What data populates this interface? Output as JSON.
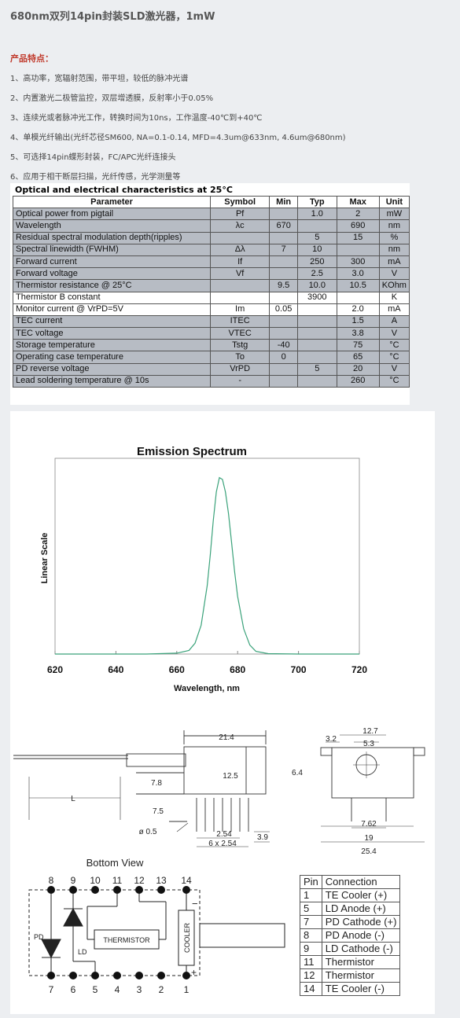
{
  "page": {
    "title": "680nm双列14pin封装SLD激光器，1mW",
    "features_heading": "产品特点：",
    "features": [
      "1、高功率，宽辐射范围，带平坦，较低的脉冲光谱",
      "2、内置激光二极管监控，双层增透膜，反射率小于0.05%",
      "3、连续光或者脉冲光工作，转换时间为10ns，工作温度-40℃到+40℃",
      "4、单模光纤输出(光纤芯径SM600, NA=0.1-0.14, MFD=4.3um@633nm, 4.6um@680nm)",
      "5、可选择14pin蝶形封装，FC/APC光纤连接头",
      "6、应用于相干断层扫描，光纤传感，光学测量等"
    ]
  },
  "spec_table": {
    "caption": "Optical and electrical characteristics at 25°C",
    "headers": [
      "Parameter",
      "Symbol",
      "Min",
      "Typ",
      "Max",
      "Unit"
    ],
    "rows": [
      [
        "Optical power from pigtail",
        "Pf",
        "",
        "1.0",
        "2",
        "mW"
      ],
      [
        "Wavelength",
        "λc",
        "670",
        "",
        "690",
        "nm"
      ],
      [
        "Residual spectral modulation depth(ripples)",
        "",
        "",
        "5",
        "15",
        "%"
      ],
      [
        "Spectral linewidth (FWHM)",
        "Δλ",
        "7",
        "10",
        "",
        "nm"
      ],
      [
        "Forward current",
        "If",
        "",
        "250",
        "300",
        "mA"
      ],
      [
        "Forward voltage",
        "Vf",
        "",
        "2.5",
        "3.0",
        "V"
      ],
      [
        "Thermistor resistance @ 25°C",
        "",
        "9.5",
        "10.0",
        "10.5",
        "KOhm"
      ],
      [
        "Thermistor B constant",
        "",
        "",
        "3900",
        "",
        "K"
      ],
      [
        "Monitor current @ VrPD=5V",
        "Im",
        "0.05",
        "",
        "2.0",
        "mA"
      ],
      [
        "TEC current",
        "ITEC",
        "",
        "",
        "1.5",
        "A"
      ],
      [
        "TEC voltage",
        "VTEC",
        "",
        "",
        "3.8",
        "V"
      ],
      [
        "Storage temperature",
        "Tstg",
        "-40",
        "",
        "75",
        "°C"
      ],
      [
        "Operating case temperature",
        "To",
        "0",
        "",
        "65",
        "°C"
      ],
      [
        "PD reverse voltage",
        "VrPD",
        "",
        "5",
        "20",
        "V"
      ],
      [
        "Lead soldering temperature @ 10s",
        "-",
        "",
        "",
        "260",
        "°C"
      ]
    ]
  },
  "chart_data": {
    "type": "line",
    "title": "Emission Spectrum",
    "xlabel": "Wavelength, nm",
    "ylabel": "Linear Scale",
    "xlim": [
      620,
      720
    ],
    "ylim": [
      0,
      1
    ],
    "x_ticks": [
      "620",
      "640",
      "660",
      "680",
      "700",
      "720"
    ],
    "grid": false,
    "color": "#3aa27a",
    "series": [
      {
        "x": [
          620,
          650,
          660,
          664,
          666,
          668,
          670,
          671,
          672,
          673,
          674,
          675,
          676,
          677,
          678,
          679,
          680,
          682,
          684,
          686,
          690,
          700,
          720
        ],
        "y": [
          0,
          0,
          0.005,
          0.02,
          0.06,
          0.16,
          0.38,
          0.55,
          0.74,
          0.9,
          0.98,
          0.97,
          0.9,
          0.78,
          0.62,
          0.46,
          0.32,
          0.14,
          0.05,
          0.015,
          0.002,
          0,
          0
        ]
      }
    ]
  },
  "drawing": {
    "dims_side": [
      "21.4",
      "12.5",
      "7.8",
      "7.5",
      "L",
      "ø 0.5",
      "2.54",
      "6 x 2.54",
      "3.9"
    ],
    "dims_end": [
      "12.7",
      "3.2",
      "5.3",
      "6.4",
      "7.62",
      "19",
      "25.4"
    ],
    "bottom_view_label": "Bottom View",
    "top_pins": [
      "8",
      "9",
      "10",
      "11",
      "12",
      "13",
      "14"
    ],
    "bottom_pins": [
      "7",
      "6",
      "5",
      "4",
      "3",
      "2",
      "1"
    ],
    "labels": {
      "pd": "PD",
      "ld": "LD",
      "thermistor": "THERMISTOR",
      "cooler": "COOLER",
      "minus": "−",
      "plus": "+"
    }
  },
  "pin_table": {
    "headers": [
      "Pin",
      "Connection"
    ],
    "rows": [
      [
        "1",
        "TE Cooler (+)"
      ],
      [
        "5",
        "LD Anode (+)"
      ],
      [
        "7",
        "PD Cathode (+)"
      ],
      [
        "8",
        "PD Anode (-)"
      ],
      [
        "9",
        "LD Cathode (-)"
      ],
      [
        "11",
        "Thermistor"
      ],
      [
        "12",
        "Thermistor"
      ],
      [
        "14",
        "TE Cooler (-)"
      ]
    ]
  }
}
